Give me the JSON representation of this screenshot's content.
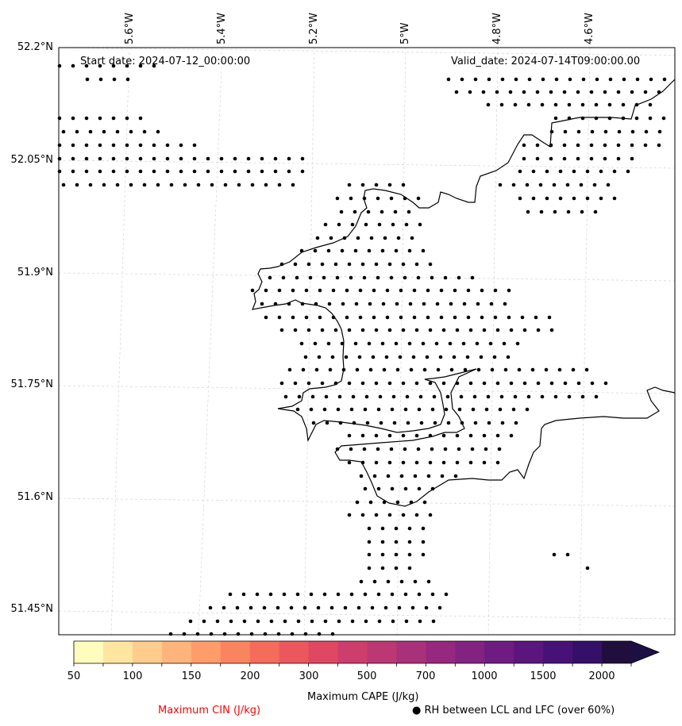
{
  "header": {
    "start_date": "Start date: 2024-07-12_00:00:00",
    "valid_date": "Valid_date: 2024-07-14T09:00:00.00"
  },
  "axes": {
    "lat_labels": [
      "52.2°N",
      "52.05°N",
      "51.9°N",
      "51.75°N",
      "51.6°N",
      "51.45°N"
    ],
    "lon_labels": [
      "5.6°W",
      "5.4°W",
      "5.2°W",
      "5°W",
      "4.8°W",
      "4.6°W"
    ]
  },
  "colorbar": {
    "label": "Maximum CAPE (J/kg)",
    "ticks": [
      "50",
      "100",
      "150",
      "200",
      "300",
      "500",
      "700",
      "1000",
      "1500",
      "2000"
    ],
    "colors": [
      "#fffdbe",
      "#fee5a0",
      "#fecd8d",
      "#feb47b",
      "#fe9c6a",
      "#fb8460",
      "#f66c5b",
      "#ec575e",
      "#df4763",
      "#cd3e6d",
      "#bc3873",
      "#a9317a",
      "#96297f",
      "#822381",
      "#6e1c81",
      "#5b167e",
      "#471278",
      "#341069",
      "#200f3d"
    ],
    "extend_color": "#1c1042"
  },
  "legend": {
    "cin_label": "Maximum CIN (J/kg)",
    "cin_color": "#ff0000",
    "rh_symbol": "●",
    "rh_label": "RH between LCL and LFC (over 60%)"
  }
}
